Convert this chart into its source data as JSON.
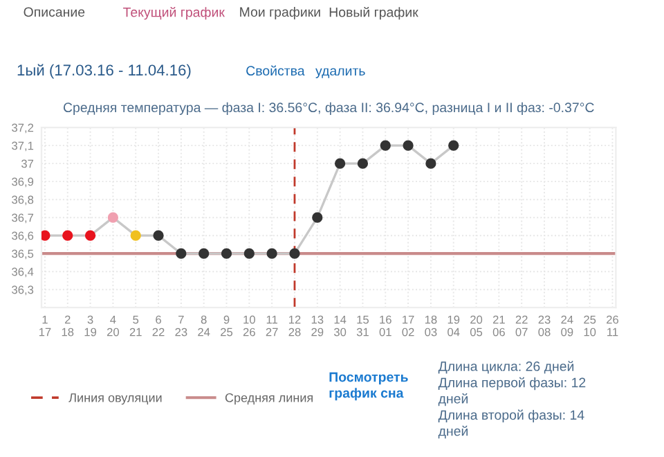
{
  "chart_data": {
    "type": "line",
    "title": "Средняя температура — фаза I: 36.56°C, фаза II: 36.94°C, разница I и II фаз: -0.37°C",
    "subtitle": "1ый (17.03.16 - 11.04.16)",
    "categories": [
      "1\n17",
      "2\n18",
      "3\n19",
      "4\n20",
      "5\n21",
      "6\n22",
      "7\n23",
      "8\n24",
      "9\n25",
      "10\n26",
      "11\n27",
      "12\n28",
      "13\n29",
      "14\n30",
      "15\n31",
      "16\n01",
      "17\n02",
      "18\n03",
      "19\n04",
      "20\n05",
      "21\n06",
      "22\n07",
      "23\n08",
      "24\n09",
      "25\n10",
      "26\n11"
    ],
    "series": [
      {
        "color": "#c8c8c8",
        "values": [
          36.6,
          36.6,
          36.6,
          36.7,
          36.6,
          36.6,
          36.5,
          36.5,
          36.5,
          36.5,
          36.5,
          36.5,
          36.7,
          37.0,
          37.0,
          37.1,
          37.1,
          37.0,
          37.1,
          null,
          null,
          null,
          null,
          null,
          null,
          null
        ],
        "colors": [
          "#e8141e",
          "#e8141e",
          "#e8141e",
          "#f0a0b0",
          "#f0c020",
          "#333333",
          "#333333",
          "#333333",
          "#333333",
          "#333333",
          "#333333",
          "#333333",
          "#333333",
          "#333333",
          "#333333",
          "#333333",
          "#333333",
          "#333333",
          "#333333",
          null,
          null,
          null,
          null,
          null,
          null,
          null
        ]
      }
    ],
    "ylim": [
      36.2,
      37.2
    ],
    "yticks": [
      {
        "value": 36.3,
        "label": "36,3"
      },
      {
        "value": 36.4,
        "label": "36,4"
      },
      {
        "value": 36.5,
        "label": "36,5"
      },
      {
        "value": 36.6,
        "label": "36,6"
      },
      {
        "value": 36.7,
        "label": "36,7"
      },
      {
        "value": 36.8,
        "label": "36,8"
      },
      {
        "value": 36.9,
        "label": "36,9"
      },
      37,
      {
        "value": 37.1,
        "label": "37,1"
      },
      {
        "value": 37.2,
        "label": "37,2"
      }
    ],
    "ref_lines": [
      {
        "axis": "x",
        "value": "12\n28",
        "label": "Линия овуляции",
        "color": "#c0392b",
        "line_style": "dashed"
      },
      {
        "axis": "y",
        "value": 36.5,
        "label": "Средняя линия",
        "color": "#c98b8b",
        "line_style": "solid"
      }
    ],
    "annotations": [
      "Описание",
      "Текущий график",
      "Мои графики",
      "Новый график",
      "Свойства",
      "удалить",
      "Посмотреть график сна",
      "Длина цикла: 26 дней\nДлина первой фазы: 12\nдней\nДлина второй фазы: 14\nдней"
    ],
    "grid": true,
    "legend": "bottom left",
    "marker": "circle",
    "line_style": "solid"
  }
}
